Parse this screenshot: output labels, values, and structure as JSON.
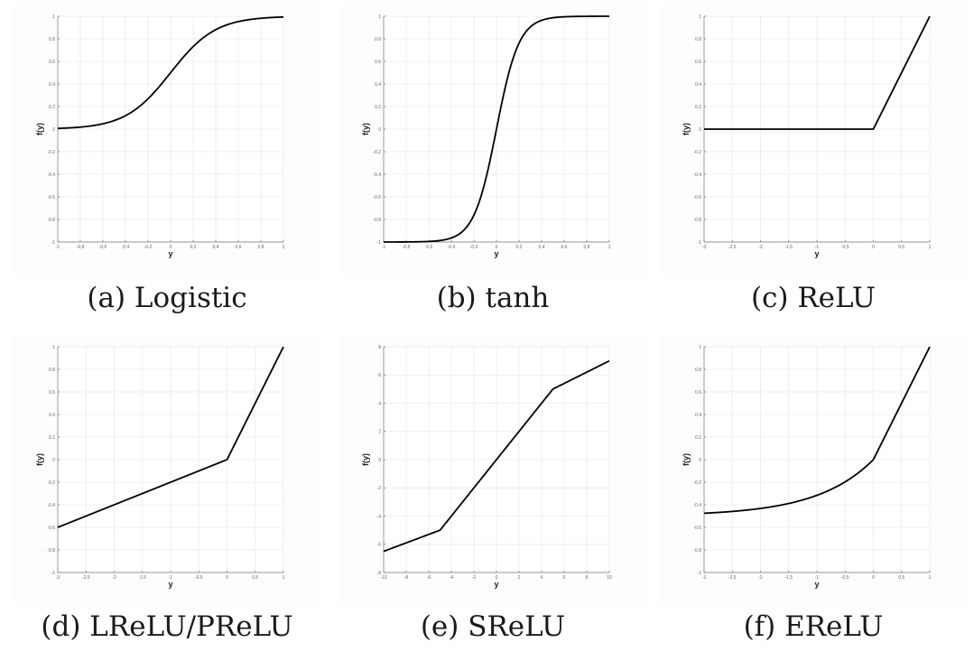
{
  "chart_data": [
    {
      "type": "line",
      "caption": "(a) Logistic",
      "function": "logistic",
      "xlabel": "y",
      "ylabel": "f(y)",
      "xlim": [
        -1,
        1
      ],
      "ylim": [
        -1,
        1
      ],
      "x_ticks": [
        "-1",
        "-0.8",
        "-0.6",
        "-0.4",
        "-0.2",
        "0",
        "0.2",
        "0.4",
        "0.6",
        "0.8",
        "1"
      ],
      "y_ticks": [
        "1",
        "0.8",
        "0.6",
        "0.4",
        "0.2",
        "0",
        "-0.2",
        "-0.4",
        "-0.6",
        "-0.8",
        "-1"
      ],
      "grid": true,
      "points": [
        [
          -1,
          0.006
        ],
        [
          -0.8,
          0.018
        ],
        [
          -0.6,
          0.047
        ],
        [
          -0.4,
          0.119
        ],
        [
          -0.2,
          0.269
        ],
        [
          0,
          0.5
        ],
        [
          0.2,
          0.731
        ],
        [
          0.4,
          0.881
        ],
        [
          0.6,
          0.953
        ],
        [
          0.8,
          0.982
        ],
        [
          1,
          0.993
        ]
      ]
    },
    {
      "type": "line",
      "caption": "(b) tanh",
      "function": "tanh",
      "xlabel": "y",
      "ylabel": "f(y)",
      "xlim": [
        -1,
        1
      ],
      "ylim": [
        -1,
        1
      ],
      "x_ticks": [
        "-1",
        "-0.8",
        "-0.6",
        "-0.4",
        "-0.2",
        "0",
        "0.2",
        "0.4",
        "0.6",
        "0.8",
        "1"
      ],
      "y_ticks": [
        "1",
        "0.8",
        "0.6",
        "0.4",
        "0.2",
        "0",
        "-0.2",
        "-0.4",
        "-0.6",
        "-0.8",
        "-1"
      ],
      "grid": true,
      "points": [
        [
          -1,
          -1
        ],
        [
          -0.6,
          -0.995
        ],
        [
          -0.4,
          -0.964
        ],
        [
          -0.2,
          -0.762
        ],
        [
          0,
          0
        ],
        [
          0.2,
          0.762
        ],
        [
          0.4,
          0.964
        ],
        [
          0.6,
          0.995
        ],
        [
          1,
          1
        ]
      ]
    },
    {
      "type": "line",
      "caption": "(c) ReLU",
      "function": "relu",
      "xlabel": "y",
      "ylabel": "f(y)",
      "xlim": [
        -3,
        1
      ],
      "ylim": [
        -1,
        1
      ],
      "x_ticks": [
        "-3",
        "-2.5",
        "-2",
        "-1.5",
        "-1",
        "-0.5",
        "0",
        "0.5",
        "1"
      ],
      "y_ticks": [
        "1",
        "0.8",
        "0.6",
        "0.4",
        "0.2",
        "0",
        "-0.2",
        "-0.4",
        "-0.6",
        "-0.8",
        "-1"
      ],
      "grid": true,
      "points": [
        [
          -3,
          0
        ],
        [
          0,
          0
        ],
        [
          1,
          1
        ]
      ]
    },
    {
      "type": "line",
      "caption": "(d) LReLU/PReLU",
      "function": "lrelu",
      "xlabel": "y",
      "ylabel": "f(y)",
      "xlim": [
        -3,
        1
      ],
      "ylim": [
        -1,
        1
      ],
      "x_ticks": [
        "-3",
        "-2.5",
        "-2",
        "-1.5",
        "-1",
        "-0.5",
        "0",
        "0.5",
        "1"
      ],
      "y_ticks": [
        "1",
        "0.8",
        "0.6",
        "0.4",
        "0.2",
        "0",
        "-0.2",
        "-0.4",
        "-0.6",
        "-0.8",
        "-1"
      ],
      "grid": true,
      "points": [
        [
          -3,
          -0.6
        ],
        [
          0,
          0
        ],
        [
          1,
          1
        ]
      ]
    },
    {
      "type": "line",
      "caption": "(e) SReLU",
      "function": "srelu",
      "xlabel": "y",
      "ylabel": "f(y)",
      "xlim": [
        -10,
        10
      ],
      "ylim": [
        -8,
        8
      ],
      "x_ticks": [
        "-10",
        "-8",
        "-6",
        "-4",
        "-2",
        "0",
        "2",
        "4",
        "6",
        "8",
        "10"
      ],
      "y_ticks": [
        "8",
        "6",
        "4",
        "2",
        "0",
        "-2",
        "-4",
        "-6",
        "-8"
      ],
      "grid": true,
      "points": [
        [
          -10,
          -6.5
        ],
        [
          -5,
          -5
        ],
        [
          5,
          5
        ],
        [
          10,
          7
        ]
      ]
    },
    {
      "type": "line",
      "caption": "(f) EReLU",
      "function": "elu",
      "xlabel": "y",
      "ylabel": "f(y)",
      "xlim": [
        -3,
        1
      ],
      "ylim": [
        -1,
        1
      ],
      "x_ticks": [
        "-3",
        "-2.5",
        "-2",
        "-1.5",
        "-1",
        "-0.5",
        "0",
        "0.5",
        "1"
      ],
      "y_ticks": [
        "1",
        "0.8",
        "0.6",
        "0.4",
        "0.2",
        "0",
        "-0.2",
        "-0.4",
        "-0.6",
        "-0.8",
        "-1"
      ],
      "grid": true,
      "points": [
        [
          -3,
          -0.475
        ],
        [
          -2.5,
          -0.459
        ],
        [
          -2,
          -0.432
        ],
        [
          -1.5,
          -0.388
        ],
        [
          -1,
          -0.316
        ],
        [
          -0.5,
          -0.197
        ],
        [
          0,
          0
        ],
        [
          1,
          1
        ]
      ]
    }
  ]
}
